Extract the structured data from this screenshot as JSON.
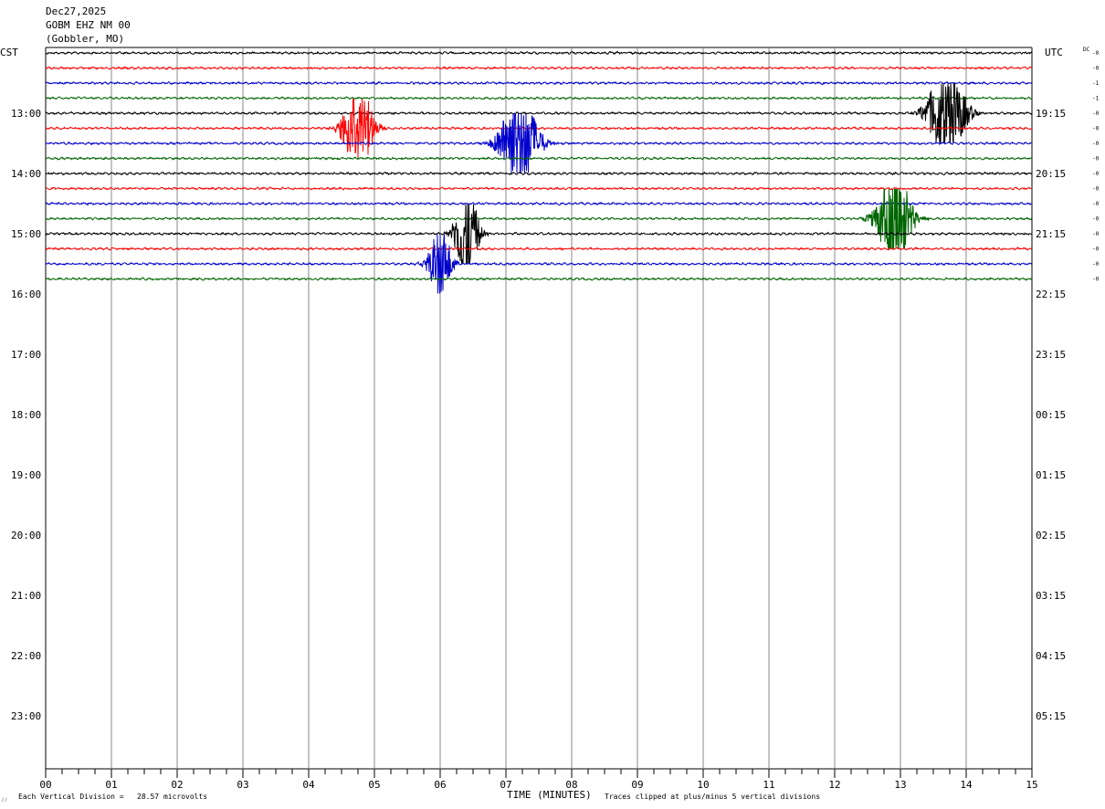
{
  "header": {
    "date": "Dec27,2025",
    "station": "GOBM EHZ NM 00",
    "location": "(Gobbler, MO)"
  },
  "left_axis_label": "CST",
  "right_axis_label": "UTC",
  "dc_label": "DC",
  "footer": {
    "vertical_division": "Each Vertical Division =   28.57 microvolts",
    "clip_note": "Traces clipped at plus/minus 5 vertical divisions",
    "corner_mark": "⁄⁄"
  },
  "colors": {
    "trace_cycle": [
      "#000000",
      "#ff0000",
      "#0000cc",
      "#006600"
    ],
    "grid": "#888888"
  },
  "chart_data": {
    "type": "line",
    "title": "",
    "xlabel": "TIME (MINUTES)",
    "xlim": [
      0,
      15
    ],
    "x_ticks": [
      "00",
      "01",
      "02",
      "03",
      "04",
      "05",
      "06",
      "07",
      "08",
      "09",
      "10",
      "11",
      "12",
      "13",
      "14",
      "15"
    ],
    "minor_ticks_per_minute": 4,
    "rows_per_hour": 4,
    "left_hour_labels": [
      "13:00",
      "14:00",
      "15:00",
      "16:00",
      "17:00",
      "18:00",
      "19:00",
      "20:00",
      "21:00",
      "22:00",
      "23:00"
    ],
    "right_hour_labels": [
      "19:15",
      "20:15",
      "21:15",
      "22:15",
      "23:15",
      "00:15",
      "01:15",
      "02:15",
      "03:15",
      "04:15",
      "05:15"
    ],
    "first_row_offset_hours": 1,
    "total_hour_slots": 12,
    "dc_offsets": [
      "-0",
      "-0",
      "-1",
      "-1",
      "-0",
      "-0",
      "-0",
      "-0",
      "-0",
      "-0",
      "-0",
      "-0",
      "-0",
      "-0",
      "-0",
      "-0"
    ],
    "traces_recorded": 16,
    "trace_length_minutes": [
      15,
      15,
      15,
      15,
      15,
      15,
      15,
      15,
      15,
      15,
      15,
      15,
      15,
      15,
      15,
      15
    ],
    "events": [
      {
        "row": 4,
        "minute": 13.7,
        "amplitude": 4.5,
        "duration": 1.0
      },
      {
        "row": 5,
        "minute": 4.75,
        "amplitude": 4.2,
        "duration": 0.8
      },
      {
        "row": 6,
        "minute": 7.2,
        "amplitude": 5.0,
        "duration": 1.0
      },
      {
        "row": 11,
        "minute": 12.9,
        "amplitude": 5.0,
        "duration": 0.9
      },
      {
        "row": 12,
        "minute": 6.4,
        "amplitude": 5.0,
        "duration": 0.6
      },
      {
        "row": 14,
        "minute": 6.0,
        "amplitude": 3.5,
        "duration": 0.6
      }
    ]
  }
}
